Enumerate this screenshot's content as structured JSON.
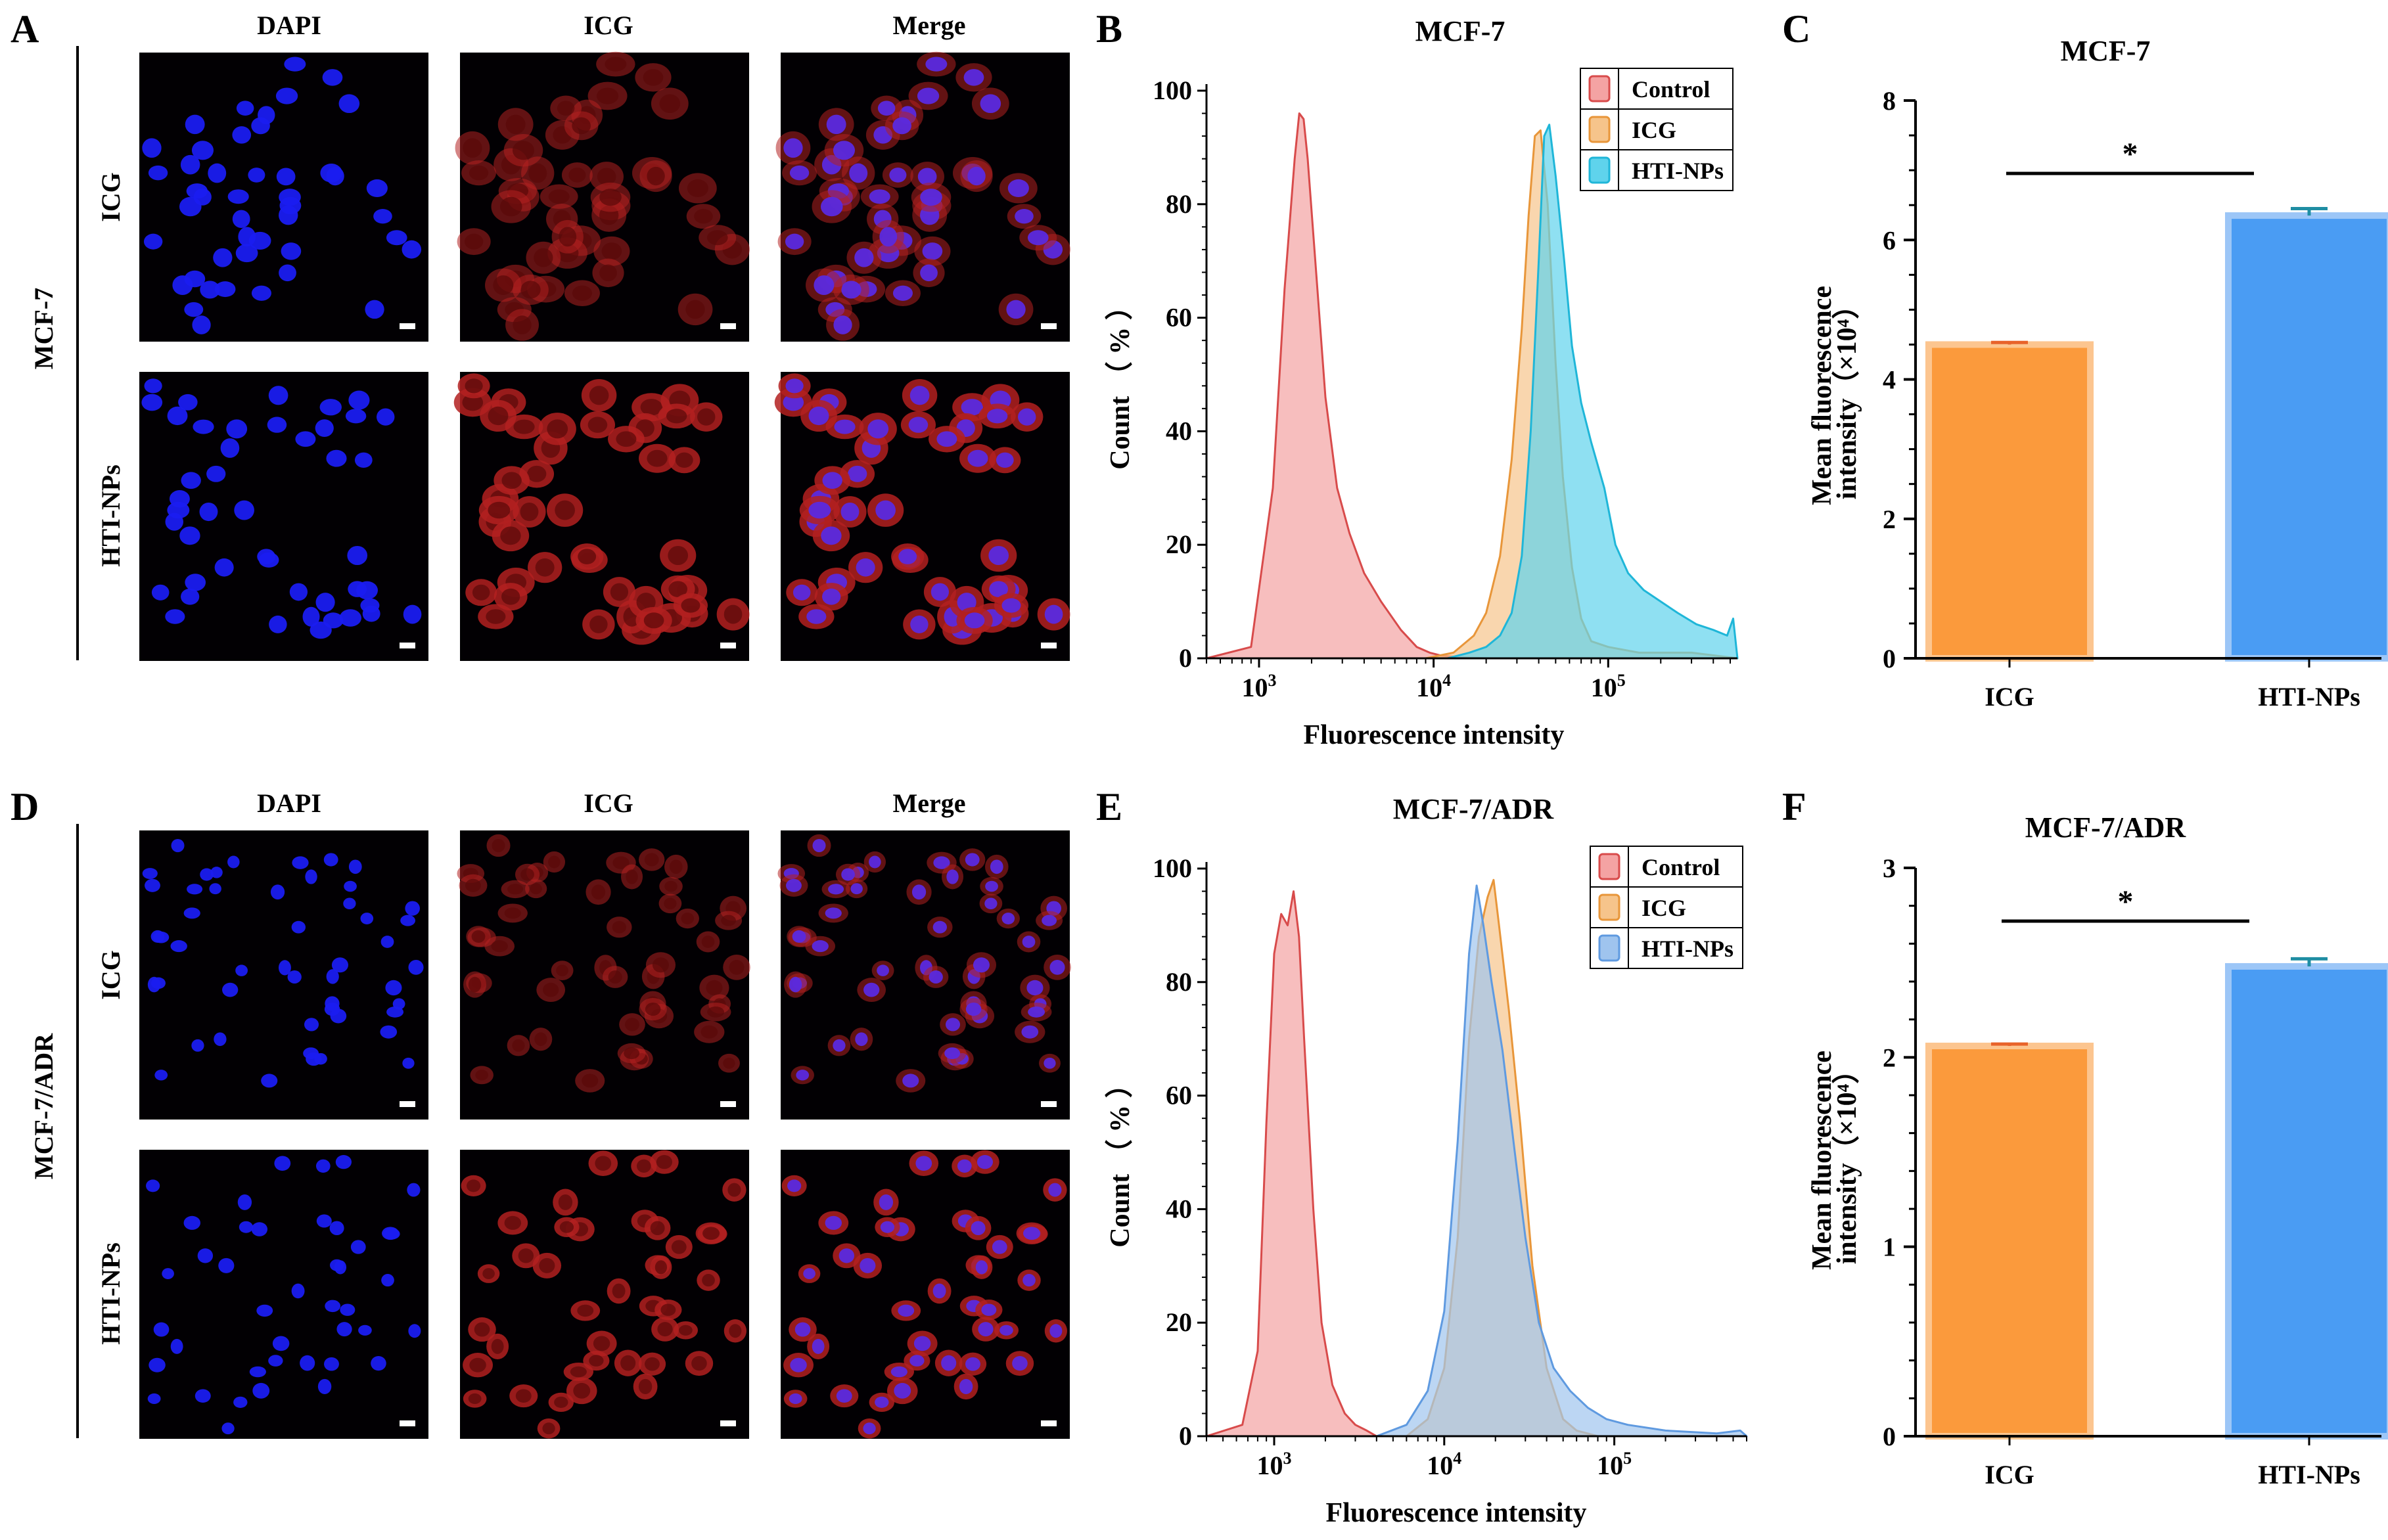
{
  "panels": {
    "A": "A",
    "B": "B",
    "C": "C",
    "D": "D",
    "E": "E",
    "F": "F"
  },
  "microscopy": [
    {
      "id": "A",
      "cell_line": "MCF-7",
      "columns": [
        "DAPI",
        "ICG",
        "Merge"
      ],
      "rows": [
        "ICG",
        "HTI-NPs"
      ]
    },
    {
      "id": "D",
      "cell_line": "MCF-7/ADR",
      "columns": [
        "DAPI",
        "ICG",
        "Merge"
      ],
      "rows": [
        "ICG",
        "HTI-NPs"
      ]
    }
  ],
  "colors": {
    "control_fill": "#f4a3a3",
    "control_stroke": "#d84b4b",
    "icg_fill": "#f6c48b",
    "icg_stroke": "#e8963a",
    "hti_fill_b": "#5fd3ec",
    "hti_stroke_b": "#1fb6d8",
    "hti_fill_e": "#9fc4ee",
    "hti_stroke_e": "#5f9ae0",
    "bar_icg": "#fb9a3c",
    "bar_icg_edge": "#fcc58f",
    "bar_hti": "#4a9cf3",
    "bar_hti_edge": "#9cc6f7",
    "err_icg": "#e8632a",
    "err_hti": "#1f8ea3"
  },
  "chart_data": [
    {
      "id": "B",
      "type": "area",
      "title": "MCF-7",
      "xlabel": "Fluorescence intensity",
      "ylabel": "Count （ % ）",
      "x_scale": "log",
      "xlim": [
        500,
        550000
      ],
      "ylim": [
        0,
        100
      ],
      "x_ticks": [
        {
          "value": 1000,
          "base": "10",
          "exp": "3"
        },
        {
          "value": 10000,
          "base": "10",
          "exp": "4"
        },
        {
          "value": 100000,
          "base": "10",
          "exp": "5"
        }
      ],
      "y_ticks": [
        0,
        20,
        40,
        60,
        80,
        100
      ],
      "legend": "top-right",
      "series": [
        {
          "name": "Control",
          "x": [
            500,
            900,
            1200,
            1400,
            1600,
            1700,
            1800,
            1900,
            2100,
            2400,
            2800,
            3300,
            4000,
            5000,
            6500,
            8000,
            9500,
            11000,
            14000,
            20000,
            550000
          ],
          "y": [
            0,
            2,
            30,
            65,
            88,
            96,
            95,
            88,
            70,
            46,
            30,
            22,
            15,
            10,
            5,
            2,
            1,
            0.5,
            0.2,
            0,
            0
          ]
        },
        {
          "name": "ICG",
          "x": [
            500,
            9000,
            13000,
            17000,
            20000,
            24000,
            28000,
            32000,
            35000,
            38000,
            41000,
            45000,
            50000,
            55000,
            62000,
            70000,
            80000,
            100000,
            150000,
            300000,
            550000
          ],
          "y": [
            0,
            0,
            1,
            4,
            8,
            18,
            35,
            58,
            78,
            92,
            93,
            80,
            52,
            32,
            16,
            7,
            3,
            2,
            1,
            1,
            0
          ]
        },
        {
          "name": "HTI-NPs",
          "x": [
            500,
            12000,
            16000,
            20000,
            24000,
            28000,
            32000,
            36000,
            40000,
            43000,
            46000,
            50000,
            56000,
            62000,
            70000,
            80000,
            95000,
            110000,
            130000,
            160000,
            200000,
            250000,
            320000,
            400000,
            480000,
            520000,
            550000
          ],
          "y": [
            0,
            0,
            1,
            2,
            4,
            8,
            18,
            40,
            70,
            92,
            94,
            85,
            70,
            55,
            45,
            38,
            30,
            20,
            15,
            12,
            10,
            8,
            6,
            5,
            4,
            7,
            0
          ]
        }
      ]
    },
    {
      "id": "C",
      "type": "bar",
      "title": "MCF-7",
      "xlabel": "",
      "ylabel": "Mean  fluorescence intensity（×10⁴）",
      "ylabel_lines": [
        "Mean  fluorescence",
        "intensity（×10⁴）"
      ],
      "categories": [
        "ICG",
        "HTI-NPs"
      ],
      "values": [
        4.5,
        6.35
      ],
      "errors": [
        0.03,
        0.1
      ],
      "ylim": [
        0,
        8
      ],
      "y_ticks": [
        0,
        2,
        4,
        6,
        8
      ],
      "significance": "*"
    },
    {
      "id": "E",
      "type": "area",
      "title": "MCF-7/ADR",
      "xlabel": "Fluorescence intensity",
      "ylabel": "Count （ % ）",
      "x_scale": "log",
      "xlim": [
        400,
        600000
      ],
      "ylim": [
        0,
        100
      ],
      "x_ticks": [
        {
          "value": 1000,
          "base": "10",
          "exp": "3"
        },
        {
          "value": 10000,
          "base": "10",
          "exp": "4"
        },
        {
          "value": 100000,
          "base": "10",
          "exp": "5"
        }
      ],
      "y_ticks": [
        0,
        20,
        40,
        60,
        80,
        100
      ],
      "legend": "top-right",
      "series": [
        {
          "name": "Control",
          "x": [
            400,
            650,
            800,
            900,
            1000,
            1100,
            1200,
            1300,
            1400,
            1500,
            1700,
            1900,
            2200,
            2600,
            3000,
            3500,
            4000,
            550000
          ],
          "y": [
            0,
            2,
            15,
            55,
            85,
            92,
            90,
            96,
            88,
            70,
            40,
            20,
            9,
            4,
            2,
            1,
            0,
            0
          ]
        },
        {
          "name": "ICG",
          "x": [
            400,
            6000,
            8000,
            10000,
            12000,
            14000,
            16000,
            18000,
            19500,
            21000,
            24000,
            28000,
            33000,
            40000,
            50000,
            60000,
            80000,
            550000
          ],
          "y": [
            0,
            0,
            3,
            12,
            35,
            70,
            88,
            95,
            98,
            90,
            75,
            55,
            30,
            12,
            3,
            1,
            0,
            0
          ]
        },
        {
          "name": "HTI-NPs",
          "x": [
            400,
            4000,
            6000,
            8000,
            10000,
            12000,
            14000,
            15500,
            17000,
            19000,
            22000,
            26000,
            30000,
            36000,
            44000,
            55000,
            70000,
            90000,
            120000,
            200000,
            400000,
            550000,
            600000
          ],
          "y": [
            0,
            0,
            2,
            8,
            22,
            52,
            85,
            97,
            90,
            80,
            68,
            50,
            35,
            20,
            12,
            8,
            5,
            3,
            2,
            1,
            0.5,
            1,
            0
          ]
        }
      ]
    },
    {
      "id": "F",
      "type": "bar",
      "title": "MCF-7/ADR",
      "xlabel": "",
      "ylabel": "Mean  fluorescence intensity（×10⁴）",
      "ylabel_lines": [
        "Mean  fluorescence",
        "intensity（×10⁴）"
      ],
      "categories": [
        "ICG",
        "HTI-NPs"
      ],
      "values": [
        2.06,
        2.48
      ],
      "errors": [
        0.01,
        0.04
      ],
      "ylim": [
        0,
        3
      ],
      "y_ticks": [
        0,
        1,
        2,
        3
      ],
      "significance": "*"
    }
  ]
}
